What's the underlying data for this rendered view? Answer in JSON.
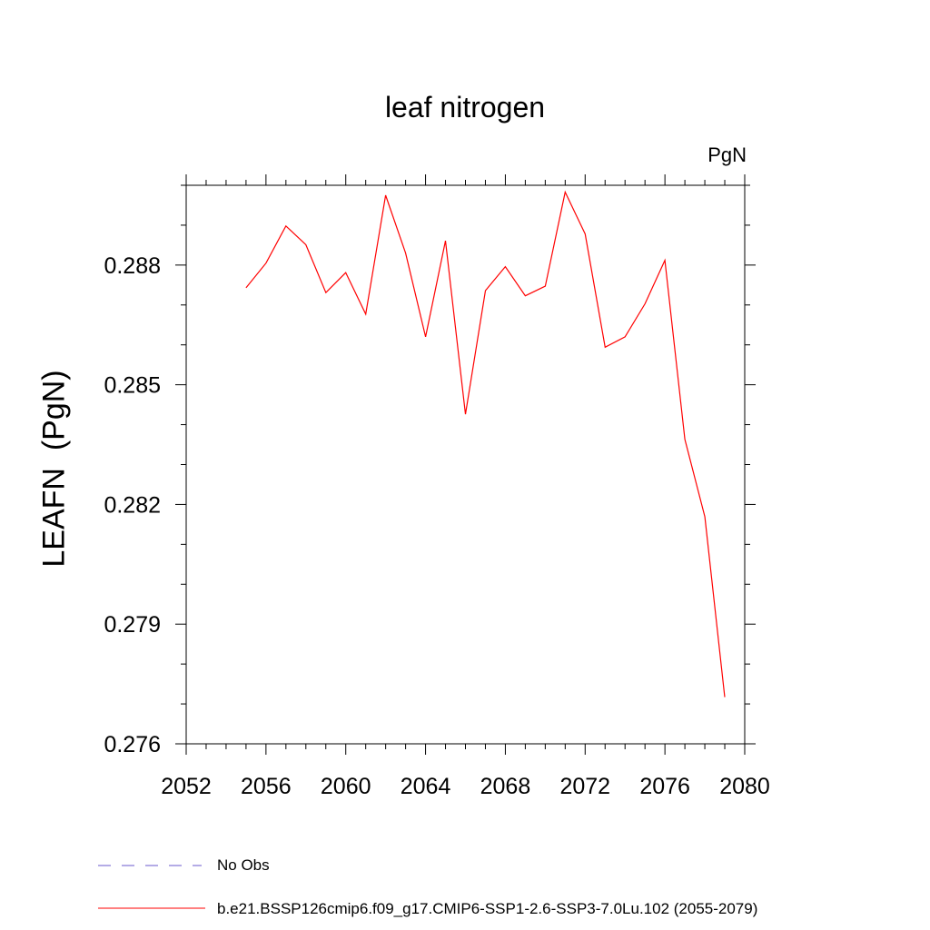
{
  "chart_data": {
    "type": "line",
    "title": "leaf nitrogen",
    "units": "PgN",
    "ylabel": "LEAFN  (PgN)",
    "xlabel": "",
    "xlim": [
      2052,
      2080
    ],
    "ylim": [
      0.276,
      0.29
    ],
    "x_ticks": [
      "2052",
      "2056",
      "2060",
      "2064",
      "2068",
      "2072",
      "2076",
      "2080"
    ],
    "y_ticks": [
      "0.276",
      "0.279",
      "0.282",
      "0.285",
      "0.288"
    ],
    "grid": false,
    "legend_position": "bottom",
    "series": [
      {
        "name": "b.e21.BSSP126cmip6.f09_g17.CMIP6-SSP1-2.6-SSP3-7.0Lu.102 (2055-2079)",
        "color": "#ff0000",
        "style": "solid",
        "x": [
          2055,
          2056,
          2057,
          2058,
          2059,
          2060,
          2061,
          2062,
          2063,
          2064,
          2065,
          2066,
          2067,
          2068,
          2069,
          2070,
          2071,
          2072,
          2073,
          2074,
          2075,
          2076,
          2077,
          2078,
          2079
        ],
        "y": [
          0.28743,
          0.28805,
          0.28898,
          0.28851,
          0.28731,
          0.28781,
          0.28677,
          0.28975,
          0.2883,
          0.2862,
          0.28861,
          0.28426,
          0.28736,
          0.28796,
          0.28723,
          0.28747,
          0.28983,
          0.28878,
          0.28594,
          0.2862,
          0.28703,
          0.28812,
          0.28363,
          0.28169,
          0.27717
        ]
      },
      {
        "name": "No Obs",
        "color": "#6a5acd",
        "style": "dashed",
        "x": [],
        "y": []
      }
    ]
  }
}
